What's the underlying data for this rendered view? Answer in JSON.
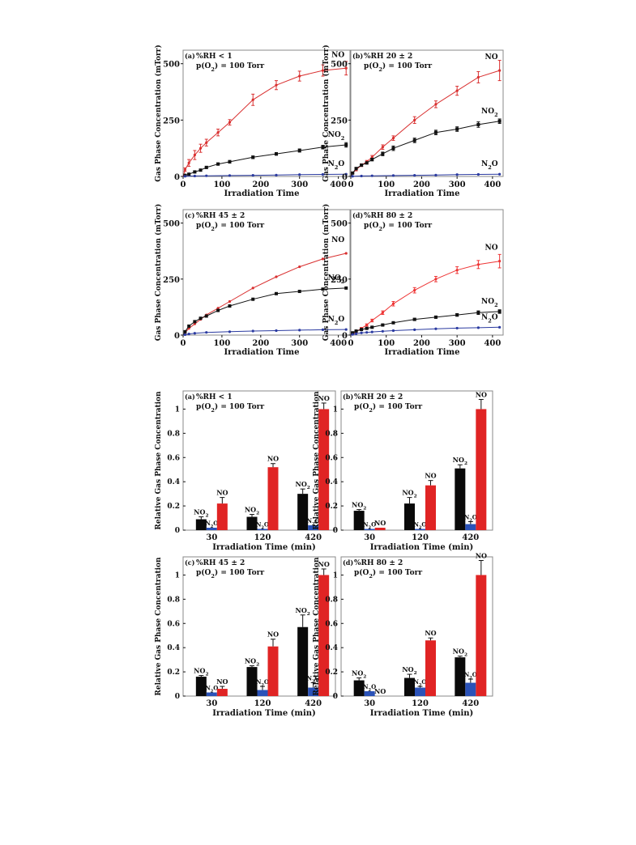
{
  "chart_data": [
    {
      "type": "line",
      "panel_label": "(a)",
      "condition": [
        "%RH < 1",
        "p(O",
        "2",
        ") = 100 Torr"
      ],
      "ylabel": "Gas Phase Concentration (mTorr)",
      "xlabel": "Irradiation Time",
      "xlim": [
        0,
        430
      ],
      "ylim": [
        0,
        560
      ],
      "xticks": [
        0,
        100,
        200,
        300,
        400
      ],
      "yticks": [
        0,
        250,
        500
      ],
      "series": [
        {
          "name": "NO",
          "sub": "",
          "color": "#d93030",
          "x": [
            5,
            15,
            30,
            45,
            60,
            90,
            120,
            180,
            240,
            300,
            360,
            420
          ],
          "y": [
            30,
            60,
            95,
            125,
            150,
            195,
            240,
            340,
            405,
            445,
            470,
            480
          ],
          "err": [
            8,
            15,
            20,
            18,
            15,
            15,
            12,
            25,
            20,
            22,
            25,
            30
          ]
        },
        {
          "name": "NO",
          "sub": "2",
          "color": "#111111",
          "x": [
            5,
            15,
            30,
            45,
            60,
            90,
            120,
            180,
            240,
            300,
            360,
            420
          ],
          "y": [
            5,
            10,
            20,
            28,
            40,
            55,
            65,
            85,
            100,
            115,
            130,
            140
          ],
          "err": [
            2,
            3,
            4,
            4,
            5,
            5,
            6,
            6,
            6,
            7,
            8,
            10
          ]
        },
        {
          "name": "N",
          "sub": "2",
          "suffix": "O",
          "color": "#2a3aa0",
          "x": [
            5,
            30,
            60,
            120,
            180,
            240,
            300,
            360,
            420
          ],
          "y": [
            1,
            2,
            3,
            4,
            5,
            6,
            8,
            9,
            10
          ],
          "err": [
            0,
            0,
            0,
            0,
            0,
            0,
            0,
            0,
            0
          ]
        }
      ]
    },
    {
      "type": "line",
      "panel_label": "(b)",
      "condition": [
        "%RH 20 ± 2",
        "p(O",
        "2",
        ") = 100 Torr"
      ],
      "ylabel": "Gas Phase Concentration (mTorr)",
      "xlabel": "Irradiation Time",
      "xlim": [
        0,
        430
      ],
      "ylim": [
        0,
        560
      ],
      "xticks": [
        0,
        100,
        200,
        300,
        400
      ],
      "yticks": [
        0,
        250,
        500
      ],
      "series": [
        {
          "name": "NO",
          "sub": "",
          "color": "#d93030",
          "x": [
            5,
            15,
            30,
            45,
            60,
            90,
            120,
            180,
            240,
            300,
            360,
            420
          ],
          "y": [
            15,
            30,
            50,
            65,
            85,
            130,
            170,
            250,
            320,
            380,
            440,
            470
          ],
          "err": [
            4,
            5,
            6,
            6,
            8,
            10,
            10,
            15,
            15,
            20,
            25,
            45
          ]
        },
        {
          "name": "NO",
          "sub": "2",
          "color": "#111111",
          "x": [
            5,
            15,
            30,
            45,
            60,
            90,
            120,
            180,
            240,
            300,
            360,
            420
          ],
          "y": [
            15,
            35,
            50,
            60,
            75,
            100,
            125,
            160,
            195,
            210,
            230,
            245
          ],
          "err": [
            3,
            5,
            5,
            5,
            6,
            8,
            10,
            10,
            10,
            10,
            12,
            10
          ]
        },
        {
          "name": "N",
          "sub": "2",
          "suffix": "O",
          "color": "#2a3aa0",
          "x": [
            5,
            30,
            60,
            120,
            180,
            240,
            300,
            360,
            420
          ],
          "y": [
            1,
            2,
            3,
            4,
            5,
            6,
            8,
            9,
            10
          ],
          "err": [
            0,
            0,
            0,
            0,
            0,
            0,
            0,
            0,
            0
          ]
        }
      ]
    },
    {
      "type": "line",
      "panel_label": "(c)",
      "condition": [
        "%RH 45 ± 2",
        "p(O",
        "2",
        ") = 100 Torr"
      ],
      "ylabel": "Gas Phase Concentration (mTorr)",
      "xlabel": "Irradiation Time",
      "xlim": [
        0,
        430
      ],
      "ylim": [
        0,
        560
      ],
      "xticks": [
        0,
        100,
        200,
        300,
        400
      ],
      "yticks": [
        0,
        250,
        500
      ],
      "series": [
        {
          "name": "NO",
          "sub": "",
          "color": "#d93030",
          "x": [
            5,
            15,
            30,
            45,
            60,
            90,
            120,
            180,
            240,
            300,
            360,
            420
          ],
          "y": [
            10,
            30,
            50,
            70,
            90,
            120,
            150,
            210,
            260,
            305,
            340,
            365
          ],
          "err": [
            0,
            0,
            0,
            0,
            0,
            0,
            0,
            0,
            0,
            0,
            0,
            0
          ]
        },
        {
          "name": "NO",
          "sub": "2",
          "color": "#111111",
          "x": [
            5,
            15,
            30,
            45,
            60,
            90,
            120,
            180,
            240,
            300,
            360,
            420
          ],
          "y": [
            15,
            40,
            60,
            75,
            85,
            110,
            130,
            160,
            185,
            195,
            205,
            210
          ],
          "err": [
            0,
            0,
            0,
            0,
            0,
            0,
            0,
            0,
            0,
            0,
            0,
            0
          ]
        },
        {
          "name": "N",
          "sub": "2",
          "suffix": "O",
          "color": "#2a3aa0",
          "x": [
            5,
            15,
            30,
            60,
            120,
            180,
            240,
            300,
            360,
            420
          ],
          "y": [
            2,
            5,
            8,
            12,
            15,
            18,
            20,
            22,
            24,
            25
          ],
          "err": [
            0,
            0,
            0,
            0,
            0,
            0,
            0,
            0,
            0,
            0
          ]
        }
      ]
    },
    {
      "type": "line",
      "panel_label": "(d)",
      "condition": [
        "%RH 80 ± 2",
        "p(O",
        "2",
        ") = 100 Torr"
      ],
      "ylabel": "Gas Phase Concentration (mTorr)",
      "xlabel": "Irradiation Time",
      "xlim": [
        0,
        430
      ],
      "ylim": [
        0,
        560
      ],
      "xticks": [
        0,
        100,
        200,
        300,
        400
      ],
      "yticks": [
        0,
        250,
        500
      ],
      "series": [
        {
          "name": "NO",
          "sub": "",
          "color": "#ee3535",
          "x": [
            5,
            15,
            30,
            45,
            60,
            90,
            120,
            180,
            240,
            300,
            360,
            420
          ],
          "y": [
            5,
            15,
            30,
            45,
            65,
            100,
            140,
            200,
            250,
            290,
            315,
            330
          ],
          "err": [
            2,
            3,
            4,
            5,
            6,
            8,
            10,
            12,
            12,
            15,
            18,
            30
          ]
        },
        {
          "name": "NO",
          "sub": "2",
          "color": "#111111",
          "x": [
            5,
            15,
            30,
            45,
            60,
            90,
            120,
            180,
            240,
            300,
            360,
            420
          ],
          "y": [
            10,
            18,
            25,
            30,
            35,
            45,
            55,
            70,
            80,
            90,
            100,
            105
          ],
          "err": [
            2,
            3,
            3,
            3,
            3,
            4,
            4,
            5,
            5,
            6,
            8,
            8
          ]
        },
        {
          "name": "N",
          "sub": "2",
          "suffix": "O",
          "color": "#2a3aa0",
          "x": [
            5,
            15,
            30,
            45,
            60,
            90,
            120,
            180,
            240,
            300,
            360,
            420
          ],
          "y": [
            3,
            6,
            10,
            12,
            14,
            17,
            20,
            24,
            28,
            31,
            33,
            35
          ],
          "err": [
            0,
            0,
            0,
            0,
            0,
            0,
            0,
            0,
            0,
            0,
            0,
            0
          ]
        }
      ]
    },
    {
      "type": "bar",
      "panel_label": "(a)",
      "condition": [
        "%RH < 1",
        "p(O",
        "2",
        ") = 100 Torr"
      ],
      "ylabel": "Relative Gas Phase Concentration",
      "xlabel": "Irradiation Time (min)",
      "categories": [
        "30",
        "120",
        "420"
      ],
      "ylim": [
        0,
        1.15
      ],
      "yticks": [
        "0",
        "0.2",
        "0.4",
        "0.6",
        "0.8",
        "1"
      ],
      "series": [
        {
          "name": "NO",
          "sub": "2",
          "color": "#0a0a0a",
          "label_color": "#111111",
          "values": [
            0.09,
            0.11,
            0.3
          ],
          "err": [
            0.02,
            0.02,
            0.04
          ]
        },
        {
          "name": "N",
          "sub": "2",
          "suffix": "O",
          "color": "#2a52b8",
          "label_color": "#2a52b8",
          "values": [
            0.02,
            0.01,
            0.04
          ],
          "err": [
            0,
            0,
            0
          ]
        },
        {
          "name": "NO",
          "sub": "",
          "color": "#e02424",
          "label_color": "#e02424",
          "values": [
            0.22,
            0.52,
            1.0
          ],
          "err": [
            0.05,
            0.03,
            0.05
          ]
        }
      ]
    },
    {
      "type": "bar",
      "panel_label": "(b)",
      "condition": [
        "%RH 20 ± 2",
        "p(O",
        "2",
        ") = 100 Torr"
      ],
      "ylabel": "Relative Gas Phase Concentration",
      "xlabel": "Irradiation Time (min)",
      "categories": [
        "30",
        "120",
        "420"
      ],
      "ylim": [
        0,
        1.15
      ],
      "yticks": [
        "0",
        "0.2",
        "0.4",
        "0.6",
        "0.8",
        "1"
      ],
      "series": [
        {
          "name": "NO",
          "sub": "2",
          "color": "#0a0a0a",
          "label_color": "#111111",
          "values": [
            0.16,
            0.22,
            0.51
          ],
          "err": [
            0.01,
            0.05,
            0.03
          ]
        },
        {
          "name": "N",
          "sub": "2",
          "suffix": "O",
          "color": "#2a52b8",
          "label_color": "#2a52b8",
          "values": [
            0.01,
            0.01,
            0.05
          ],
          "err": [
            0,
            0,
            0.02
          ]
        },
        {
          "name": "NO",
          "sub": "",
          "color": "#e02424",
          "label_color": "#e02424",
          "values": [
            0.02,
            0.37,
            1.0
          ],
          "err": [
            0,
            0.04,
            0.08
          ]
        }
      ]
    },
    {
      "type": "bar",
      "panel_label": "(c)",
      "condition": [
        "%RH 45 ± 2",
        "p(O",
        "2",
        ") = 100 Torr"
      ],
      "ylabel": "Relative Gas Phase Concentration",
      "xlabel": "Irradiation Time (min)",
      "categories": [
        "30",
        "120",
        "420"
      ],
      "ylim": [
        0,
        1.15
      ],
      "yticks": [
        "0",
        "0.2",
        "0.4",
        "0.6",
        "0.8",
        "1"
      ],
      "series": [
        {
          "name": "NO",
          "sub": "2",
          "color": "#0a0a0a",
          "label_color": "#111111",
          "values": [
            0.16,
            0.24,
            0.57
          ],
          "err": [
            0.01,
            0.01,
            0.1
          ]
        },
        {
          "name": "N",
          "sub": "2",
          "suffix": "O",
          "color": "#2a52b8",
          "label_color": "#2a52b8",
          "values": [
            0.03,
            0.05,
            0.07
          ],
          "err": [
            0,
            0.03,
            0.04
          ]
        },
        {
          "name": "NO",
          "sub": "",
          "color": "#e02424",
          "label_color": "#e02424",
          "values": [
            0.06,
            0.41,
            1.0
          ],
          "err": [
            0.02,
            0.06,
            0.05
          ]
        }
      ]
    },
    {
      "type": "bar",
      "panel_label": "(d)",
      "condition": [
        "%RH 80 ± 2",
        "p(O",
        "2",
        ") = 100 Torr"
      ],
      "ylabel": "Relative Gas Phase Concentration",
      "xlabel": "Irradiation Time (min)",
      "categories": [
        "30",
        "120",
        "420"
      ],
      "ylim": [
        0,
        1.15
      ],
      "yticks": [
        "0",
        "0.2",
        "0.4",
        "0.6",
        "0.8",
        "1"
      ],
      "series": [
        {
          "name": "NO",
          "sub": "2",
          "color": "#0a0a0a",
          "label_color": "#111111",
          "values": [
            0.13,
            0.15,
            0.32
          ],
          "err": [
            0.02,
            0.03,
            0.01
          ]
        },
        {
          "name": "N",
          "sub": "2",
          "suffix": "O",
          "color": "#2a52b8",
          "label_color": "#2a52b8",
          "values": [
            0.04,
            0.07,
            0.11
          ],
          "err": [
            0,
            0.01,
            0.03
          ]
        },
        {
          "name": "NO",
          "sub": "",
          "color": "#e02424",
          "label_color": "#e02424",
          "values": [
            0,
            0.46,
            1.0
          ],
          "err": [
            0,
            0.02,
            0.12
          ]
        }
      ]
    }
  ]
}
